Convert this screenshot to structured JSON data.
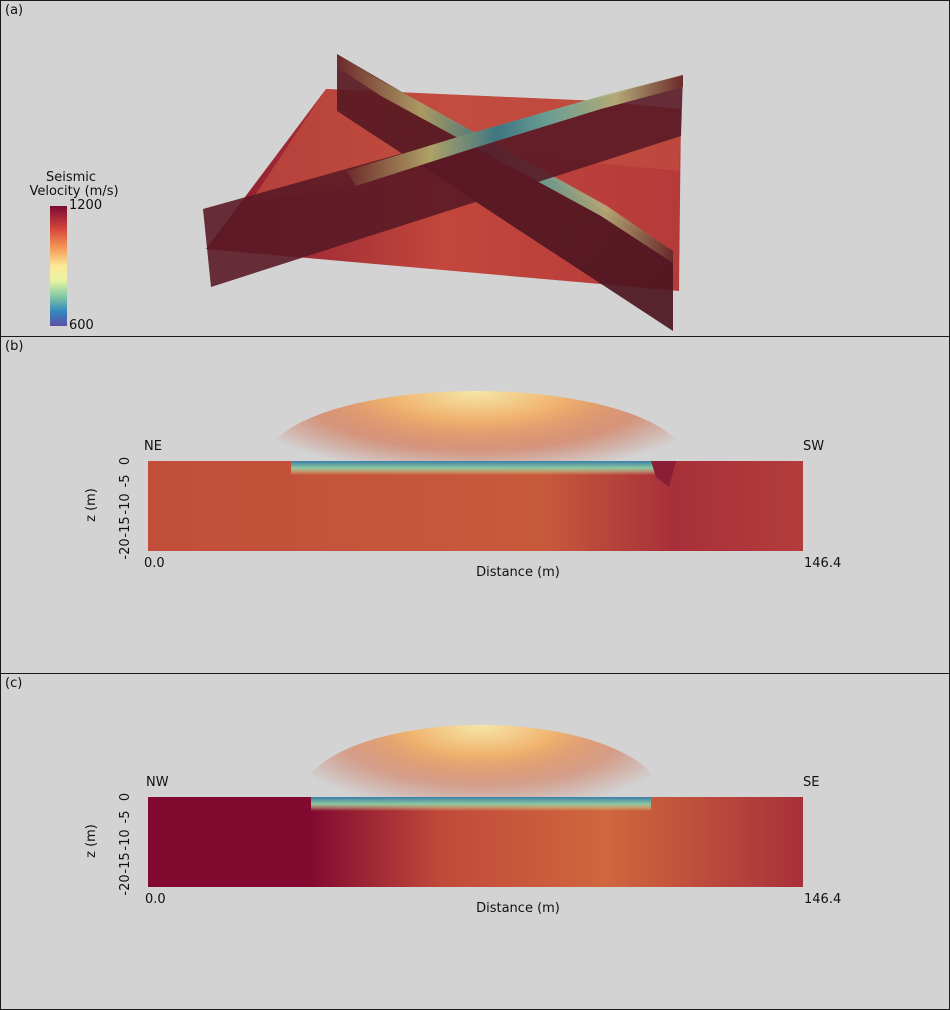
{
  "panels": {
    "a": {
      "label": "(a)",
      "colorbar": {
        "title_line1": "Seismic",
        "title_line2": "Velocity (m/s)",
        "max_label": "1200",
        "min_label": "600",
        "colors": [
          "#7a0a35",
          "#d84a3c",
          "#f39a55",
          "#fde89a",
          "#e8f4a2",
          "#86c9a4",
          "#3288bd",
          "#5e4fa2"
        ]
      }
    },
    "b": {
      "label": "(b)",
      "left_dir": "NE",
      "right_dir": "SW",
      "ylabel": "z (m)",
      "yticks": [
        "0",
        "-5",
        "-10",
        "-15",
        "-20"
      ],
      "x_start": "0.0",
      "x_end": "146.4",
      "xlabel": "Distance (m)"
    },
    "c": {
      "label": "(c)",
      "left_dir": "NW",
      "right_dir": "SE",
      "ylabel": "z (m)",
      "yticks": [
        "0",
        "-5",
        "-10",
        "-15",
        "-20"
      ],
      "x_start": "0.0",
      "x_end": "146.4",
      "xlabel": "Distance (m)"
    }
  }
}
